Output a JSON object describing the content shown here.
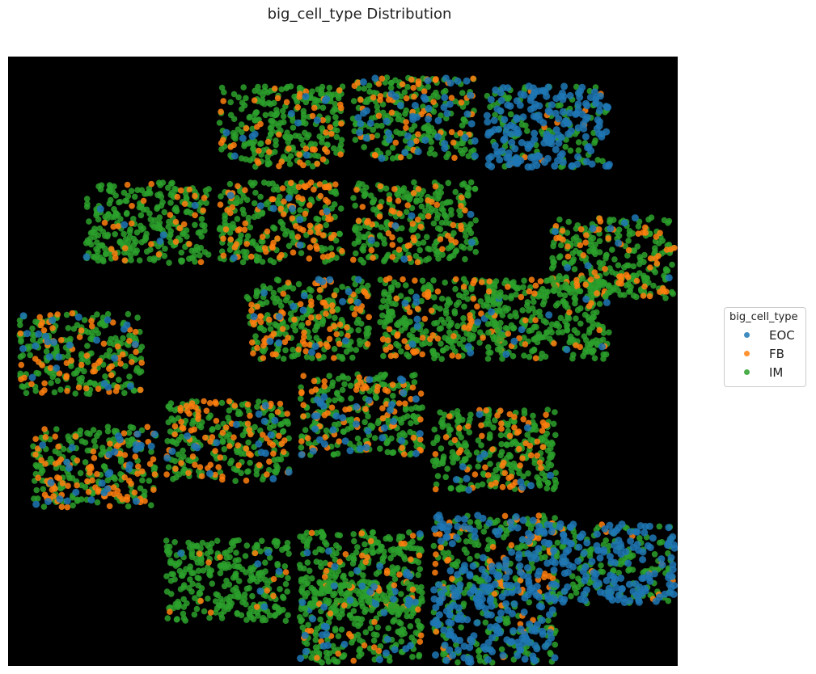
{
  "chart_data": {
    "type": "scatter",
    "title": "big_cell_type Distribution",
    "xlabel": "",
    "ylabel": "",
    "axes_visible": false,
    "background": "#000000",
    "grid": false,
    "legend": {
      "title": "big_cell_type",
      "placement": "center-right, outside plot"
    },
    "series": [
      {
        "name": "EOC",
        "color": "#1f77b4"
      },
      {
        "name": "FB",
        "color": "#ff7f0e"
      },
      {
        "name": "IM",
        "color": "#2ca02c"
      }
    ],
    "tiles": [
      {
        "col": 1.5,
        "row": 0.1,
        "EOC": 0.04,
        "FB": 0.16,
        "IM": 0.8
      },
      {
        "col": 2.5,
        "row": 0.0,
        "EOC": 0.16,
        "FB": 0.18,
        "IM": 0.66
      },
      {
        "col": 3.5,
        "row": 0.1,
        "EOC": 0.62,
        "FB": 0.04,
        "IM": 0.34
      },
      {
        "col": 0.5,
        "row": 1.2,
        "EOC": 0.02,
        "FB": 0.1,
        "IM": 0.88
      },
      {
        "col": 1.5,
        "row": 1.2,
        "EOC": 0.03,
        "FB": 0.3,
        "IM": 0.67
      },
      {
        "col": 2.5,
        "row": 1.2,
        "EOC": 0.02,
        "FB": 0.18,
        "IM": 0.8
      },
      {
        "col": 4.3,
        "row": 1.6,
        "EOC": 0.03,
        "FB": 0.2,
        "IM": 0.77
      },
      {
        "col": 1.7,
        "row": 2.3,
        "EOC": 0.06,
        "FB": 0.28,
        "IM": 0.66
      },
      {
        "col": 2.7,
        "row": 2.3,
        "EOC": 0.04,
        "FB": 0.2,
        "IM": 0.76
      },
      {
        "col": 3.5,
        "row": 2.3,
        "EOC": 0.03,
        "FB": 0.1,
        "IM": 0.87
      },
      {
        "col": 0.0,
        "row": 2.7,
        "EOC": 0.08,
        "FB": 0.22,
        "IM": 0.7
      },
      {
        "col": 1.1,
        "row": 3.7,
        "EOC": 0.06,
        "FB": 0.28,
        "IM": 0.66
      },
      {
        "col": 2.1,
        "row": 3.4,
        "EOC": 0.12,
        "FB": 0.24,
        "IM": 0.64
      },
      {
        "col": 3.1,
        "row": 3.8,
        "EOC": 0.04,
        "FB": 0.2,
        "IM": 0.76
      },
      {
        "col": 0.1,
        "row": 4.0,
        "EOC": 0.1,
        "FB": 0.3,
        "IM": 0.6
      },
      {
        "col": 1.1,
        "row": 5.3,
        "EOC": 0.02,
        "FB": 0.04,
        "IM": 0.94
      },
      {
        "col": 2.1,
        "row": 5.2,
        "EOC": 0.06,
        "FB": 0.12,
        "IM": 0.82
      },
      {
        "col": 3.1,
        "row": 5.0,
        "EOC": 0.36,
        "FB": 0.16,
        "IM": 0.48
      },
      {
        "col": 4.1,
        "row": 5.1,
        "EOC": 0.52,
        "FB": 0.04,
        "IM": 0.44
      },
      {
        "col": 2.1,
        "row": 6.1,
        "EOC": 0.1,
        "FB": 0.08,
        "IM": 0.82
      },
      {
        "col": 3.1,
        "row": 6.1,
        "EOC": 0.52,
        "FB": 0.06,
        "IM": 0.42
      }
    ]
  }
}
